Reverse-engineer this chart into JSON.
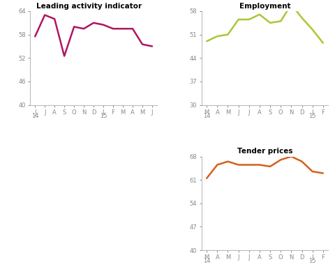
{
  "chart1": {
    "title": "Leading activity indicator",
    "x_labels": [
      "J",
      "J",
      "A",
      "S",
      "O",
      "N",
      "D",
      "J",
      "F",
      "M",
      "A",
      "M",
      "J"
    ],
    "x_year_labels": [
      [
        "14",
        0
      ],
      [
        "15",
        7
      ]
    ],
    "values": [
      57.5,
      63.0,
      62.0,
      52.5,
      60.0,
      59.5,
      61.0,
      60.5,
      59.5,
      59.5,
      59.5,
      55.5,
      55.0
    ],
    "ylim": [
      40,
      64
    ],
    "yticks": [
      40,
      46,
      52,
      58,
      64
    ],
    "color": "#b01560",
    "linewidth": 1.8
  },
  "chart2": {
    "title": "Employment",
    "x_labels": [
      "M",
      "A",
      "M",
      "J",
      "J",
      "A",
      "S",
      "O",
      "N",
      "D",
      "J",
      "F"
    ],
    "x_year_labels": [
      [
        "14",
        0
      ],
      [
        "15",
        10
      ]
    ],
    "values": [
      49.0,
      50.5,
      51.0,
      55.5,
      55.5,
      57.0,
      54.5,
      55.0,
      60.0,
      56.0,
      52.5,
      48.5
    ],
    "ylim": [
      30,
      58
    ],
    "yticks": [
      30,
      37,
      44,
      51,
      58
    ],
    "color": "#a8c832",
    "linewidth": 1.8
  },
  "chart3": {
    "title": "Tender prices",
    "x_labels": [
      "M",
      "A",
      "M",
      "J",
      "J",
      "A",
      "S",
      "O",
      "N",
      "D",
      "J",
      "F"
    ],
    "x_year_labels": [
      [
        "14",
        0
      ],
      [
        "15",
        10
      ]
    ],
    "values": [
      61.5,
      65.5,
      66.5,
      65.5,
      65.5,
      65.5,
      65.0,
      67.0,
      68.0,
      66.5,
      63.5,
      63.0
    ],
    "ylim": [
      40,
      68
    ],
    "yticks": [
      40,
      47,
      54,
      61,
      68
    ],
    "color": "#d4601e",
    "linewidth": 1.8
  },
  "background_color": "#ffffff",
  "tick_color": "#888888",
  "spine_color": "#bbbbbb"
}
